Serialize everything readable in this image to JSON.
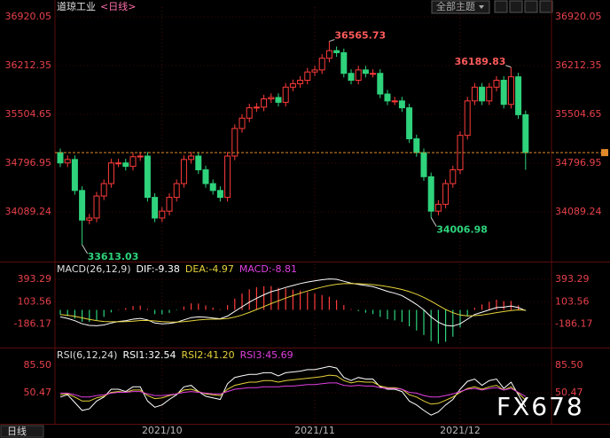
{
  "header": {
    "title": "道琼工业",
    "period": "<日线>",
    "theme_menu": "全部主题"
  },
  "period_tab": "日线",
  "watermark": "FX678",
  "chart_data": [
    {
      "type": "candlestick",
      "up_color": "#ff3b3b",
      "down_color": "#2ed37c",
      "categories": [
        null,
        null,
        null,
        null,
        null,
        null,
        null,
        null,
        null,
        null,
        null,
        null,
        null,
        null,
        "2021/10",
        null,
        null,
        null,
        null,
        null,
        null,
        null,
        null,
        null,
        null,
        null,
        null,
        null,
        null,
        null,
        null,
        null,
        null,
        null,
        null,
        "2021/11",
        null,
        null,
        null,
        null,
        null,
        null,
        null,
        null,
        null,
        null,
        null,
        null,
        null,
        null,
        null,
        null,
        null,
        null,
        null,
        "2021/12",
        null,
        null,
        null,
        null,
        null,
        null,
        null,
        null,
        null
      ],
      "open": [
        34950,
        34800,
        34850,
        34400,
        33970,
        34000,
        34320,
        34500,
        34800,
        34800,
        34750,
        34890,
        34900,
        34300,
        34000,
        34100,
        34300,
        34500,
        34850,
        34900,
        34700,
        34500,
        34400,
        34300,
        34900,
        35300,
        35450,
        35600,
        35610,
        35730,
        35750,
        35680,
        35900,
        35950,
        36000,
        36120,
        36150,
        36320,
        36430,
        36400,
        36100,
        36000,
        36150,
        36100,
        36100,
        35800,
        35700,
        35700,
        35600,
        35150,
        34950,
        34600,
        34100,
        34200,
        34500,
        34700,
        35200,
        35700,
        35900,
        35700,
        35900,
        36000,
        35650,
        36050,
        35500
      ],
      "high": [
        35010,
        34910,
        34910,
        34460,
        34060,
        34380,
        34560,
        34860,
        34860,
        34860,
        34950,
        34960,
        34960,
        34360,
        34160,
        34360,
        34560,
        34910,
        34960,
        34960,
        34760,
        34560,
        34460,
        34960,
        35360,
        35510,
        35660,
        35670,
        35790,
        35810,
        35810,
        35960,
        36010,
        36060,
        36180,
        36210,
        36380,
        36565.73,
        36490,
        36460,
        36160,
        36210,
        36210,
        36160,
        36160,
        35860,
        35760,
        35760,
        35660,
        35210,
        35010,
        34660,
        34260,
        34560,
        34760,
        35260,
        35760,
        35960,
        35960,
        35960,
        36060,
        36060,
        36189.83,
        36110,
        35560
      ],
      "low": [
        34740,
        34740,
        34340,
        33613.03,
        33910,
        33940,
        34260,
        34440,
        34740,
        34690,
        34690,
        34830,
        34240,
        33940,
        33940,
        34040,
        34240,
        34440,
        34790,
        34640,
        34440,
        34340,
        34240,
        34240,
        34840,
        35240,
        35390,
        35540,
        35550,
        35670,
        35620,
        35620,
        35840,
        35890,
        35940,
        36060,
        36090,
        36260,
        36340,
        36040,
        35940,
        35940,
        36040,
        36040,
        35740,
        35640,
        35640,
        35540,
        35090,
        34890,
        34540,
        34006.98,
        34040,
        34140,
        34440,
        34640,
        35140,
        35640,
        35640,
        35640,
        35840,
        35590,
        35590,
        35440,
        34700
      ],
      "close": [
        34800,
        34850,
        34400,
        33970,
        34000,
        34320,
        34500,
        34800,
        34800,
        34750,
        34890,
        34900,
        34300,
        34000,
        34100,
        34300,
        34500,
        34850,
        34900,
        34700,
        34500,
        34400,
        34300,
        34900,
        35300,
        35450,
        35600,
        35610,
        35730,
        35750,
        35680,
        35900,
        35950,
        36000,
        36120,
        36150,
        36320,
        36430,
        36400,
        36100,
        36000,
        36150,
        36100,
        36100,
        35800,
        35700,
        35700,
        35600,
        35150,
        34950,
        34600,
        34100,
        34200,
        34500,
        34700,
        35200,
        35700,
        35900,
        35700,
        35900,
        36000,
        35650,
        36050,
        35500,
        34950
      ],
      "ylim": [
        33407,
        37062
      ],
      "yticks": [
        36920.05,
        36212.35,
        35504.65,
        34796.95,
        34089.24
      ]
    },
    {
      "type": "macd",
      "title": "MACD(26,12,9)",
      "series": [
        {
          "name": "DIF:",
          "color": "#ffffff",
          "values": [
            -90,
            -110,
            -140,
            -180,
            -200,
            -205,
            -195,
            -170,
            -150,
            -140,
            -120,
            -110,
            -130,
            -170,
            -180,
            -175,
            -160,
            -130,
            -100,
            -90,
            -95,
            -105,
            -115,
            -80,
            -20,
            40,
            100,
            150,
            195,
            235,
            260,
            290,
            315,
            340,
            360,
            375,
            390,
            400,
            395,
            370,
            345,
            330,
            315,
            300,
            270,
            240,
            215,
            185,
            130,
            70,
            0,
            -90,
            -160,
            -200,
            -210,
            -180,
            -120,
            -60,
            -30,
            0,
            30,
            35,
            50,
            30,
            -9.38
          ]
        },
        {
          "name": "DEA:",
          "color": "#e6d23a",
          "values": [
            -60,
            -70,
            -84,
            -103,
            -123,
            -139,
            -150,
            -154,
            -153,
            -151,
            -145,
            -138,
            -137,
            -143,
            -151,
            -156,
            -157,
            -152,
            -142,
            -131,
            -124,
            -120,
            -119,
            -111,
            -93,
            -66,
            -33,
            4,
            42,
            81,
            117,
            152,
            184,
            215,
            244,
            270,
            294,
            315,
            331,
            339,
            340,
            338,
            333,
            327,
            315,
            300,
            283,
            263,
            236,
            203,
            162,
            112,
            58,
            6,
            -37,
            -66,
            -77,
            -74,
            -65,
            -52,
            -36,
            -22,
            -8,
            0,
            -4.97
          ]
        },
        {
          "name": "MACD:",
          "color": "#e040e0",
          "up_color": "#ff3b3b",
          "down_color": "#2ed37c",
          "values": [
            -60,
            -80,
            -112,
            -154,
            -154,
            -132,
            -90,
            -32,
            6,
            22,
            50,
            56,
            14,
            -54,
            -58,
            -38,
            -6,
            44,
            84,
            82,
            58,
            30,
            8,
            62,
            146,
            212,
            266,
            292,
            306,
            308,
            286,
            276,
            262,
            250,
            232,
            210,
            192,
            170,
            128,
            62,
            10,
            -16,
            -36,
            -54,
            -90,
            -120,
            -136,
            -156,
            -212,
            -266,
            -324,
            -404,
            -436,
            -412,
            -346,
            -228,
            -86,
            28,
            70,
            104,
            132,
            114,
            116,
            60,
            -8.81
          ]
        }
      ],
      "ylim": [
        -464,
        590
      ],
      "yticks": [
        393.29,
        103.56,
        -186.17
      ]
    },
    {
      "type": "line",
      "title": "RSI(6,12,24)",
      "series": [
        {
          "name": "RSI1:",
          "color": "#ffffff",
          "values": [
            45,
            48,
            38,
            28,
            30,
            40,
            45,
            55,
            55,
            52,
            58,
            58,
            40,
            32,
            35,
            42,
            48,
            58,
            60,
            52,
            46,
            44,
            42,
            62,
            70,
            72,
            74,
            74,
            76,
            76,
            72,
            76,
            77,
            78,
            80,
            80,
            82,
            84,
            82,
            70,
            66,
            70,
            68,
            68,
            58,
            55,
            55,
            52,
            40,
            35,
            28,
            22,
            26,
            35,
            42,
            55,
            65,
            68,
            60,
            66,
            68,
            56,
            64,
            48,
            32.54
          ]
        },
        {
          "name": "RSI2:",
          "color": "#e6d23a",
          "values": [
            48,
            49,
            45,
            40,
            40,
            44,
            46,
            51,
            52,
            51,
            54,
            54,
            47,
            43,
            44,
            47,
            49,
            54,
            55,
            52,
            49,
            48,
            47,
            55,
            60,
            62,
            64,
            64,
            66,
            66,
            64,
            66,
            67,
            68,
            69,
            70,
            71,
            73,
            72,
            66,
            63,
            65,
            64,
            64,
            59,
            57,
            57,
            55,
            48,
            45,
            40,
            36,
            37,
            41,
            45,
            51,
            56,
            58,
            55,
            58,
            60,
            54,
            58,
            50,
            41.2
          ],
          "value_labels": [
            null,
            null,
            null,
            null,
            null,
            null,
            null,
            null,
            null,
            null,
            null,
            null,
            null,
            null,
            null,
            null,
            null,
            null,
            null,
            null,
            null,
            null,
            null,
            null,
            null,
            null,
            null,
            null,
            null,
            null,
            null,
            null,
            null,
            null,
            null,
            null,
            null,
            null,
            null,
            null,
            null,
            null,
            null,
            null,
            null,
            null,
            null,
            null,
            null,
            null,
            null,
            null,
            null,
            null,
            null,
            null,
            null,
            null,
            null,
            null,
            null,
            null,
            null,
            null,
            "41.20"
          ]
        },
        {
          "name": "RSI3:",
          "color": "#e040e0",
          "values": [
            50,
            50,
            48,
            45,
            45,
            47,
            48,
            50,
            51,
            51,
            52,
            52,
            49,
            47,
            47,
            48,
            49,
            51,
            52,
            51,
            50,
            49,
            49,
            52,
            55,
            56,
            57,
            57,
            58,
            58,
            58,
            59,
            59,
            60,
            61,
            61,
            62,
            63,
            63,
            60,
            59,
            60,
            59,
            59,
            57,
            56,
            56,
            55,
            51,
            50,
            47,
            45,
            45,
            47,
            49,
            52,
            55,
            56,
            54,
            56,
            57,
            54,
            56,
            51,
            45.69
          ]
        }
      ],
      "ylim": [
        10.9,
        104.7
      ],
      "yticks": [
        {
          "value": 85.5,
          "label": "85.50"
        },
        50.47
      ]
    }
  ]
}
